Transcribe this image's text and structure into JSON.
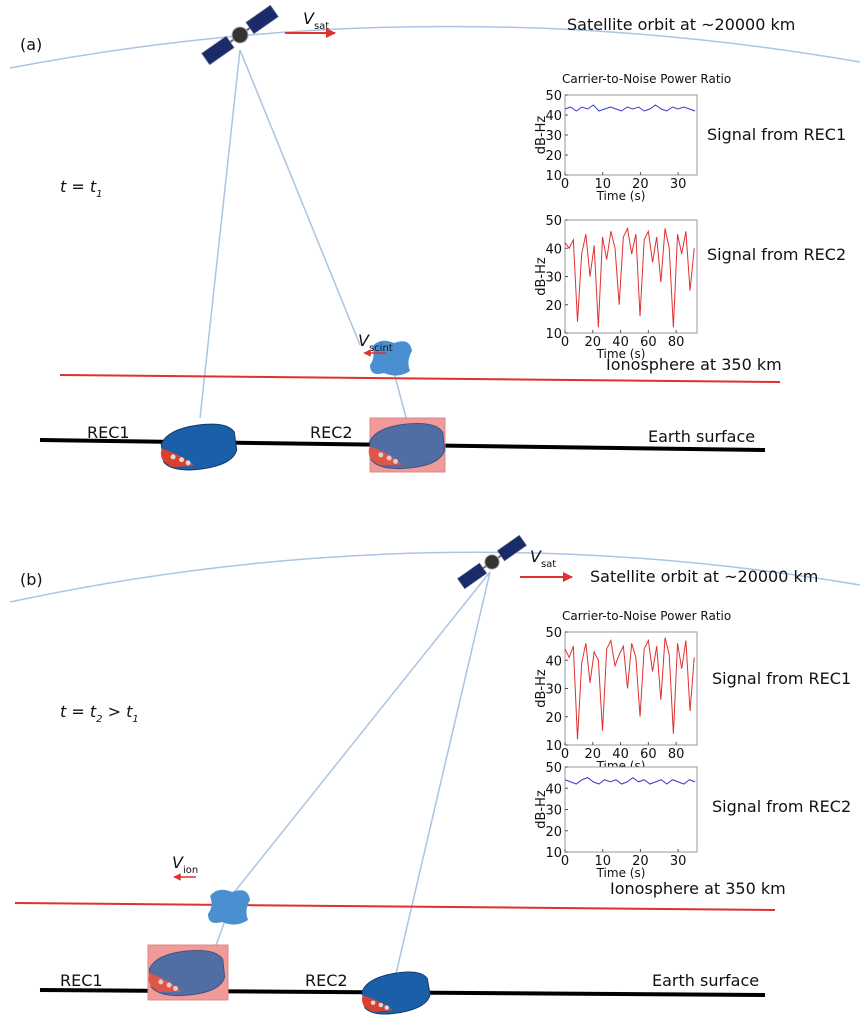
{
  "panels": [
    {
      "label": "(a)",
      "orbit_label": "Satellite orbit at ~20000 km",
      "velocity_sat": [
        "V",
        "sat"
      ],
      "time_label": [
        "t = t",
        "1"
      ],
      "ionosphere_label": "Ionosphere at 350 km",
      "velocity_irregularity": [
        "V",
        "scint"
      ],
      "earth_label": "Earth surface",
      "receivers": [
        "REC1",
        "REC2"
      ],
      "charts": [
        {
          "title": "Carrier-to-Noise Power Ratio",
          "ylabel": "dB-Hz",
          "xlabel": "Time (s)",
          "signal_label": "Signal from REC1",
          "color": "#3a3ad0",
          "xlim": [
            0,
            35
          ],
          "xticks": [
            0,
            10,
            20,
            30
          ],
          "ylim": [
            10,
            50
          ],
          "yticks": [
            10,
            20,
            30,
            40,
            50
          ],
          "x": [
            0,
            1.5,
            3,
            4.5,
            6,
            7.5,
            9,
            10.5,
            12,
            13.5,
            15,
            16.5,
            18,
            19.5,
            21,
            22.5,
            24,
            25.5,
            27,
            28.5,
            30,
            31.5,
            33,
            34.5
          ],
          "values": [
            43,
            44,
            42,
            44,
            43,
            45,
            42,
            43,
            44,
            43,
            42,
            44,
            43,
            44,
            42,
            43,
            45,
            43,
            42,
            44,
            43,
            44,
            43,
            42
          ]
        },
        {
          "ylabel": "dB-Hz",
          "xlabel": "Time (s)",
          "signal_label": "Signal from REC2",
          "color": "#e03030",
          "xlim": [
            0,
            95
          ],
          "xticks": [
            0,
            20,
            40,
            60,
            80
          ],
          "ylim": [
            10,
            50
          ],
          "yticks": [
            10,
            20,
            30,
            40,
            50
          ],
          "x": [
            0,
            3,
            6,
            9,
            12,
            15,
            18,
            21,
            24,
            27,
            30,
            33,
            36,
            39,
            42,
            45,
            48,
            51,
            54,
            57,
            60,
            63,
            66,
            69,
            72,
            75,
            78,
            81,
            84,
            87,
            90,
            93
          ],
          "values": [
            42,
            40,
            43,
            14,
            38,
            45,
            30,
            41,
            12,
            44,
            36,
            46,
            40,
            20,
            44,
            47,
            38,
            45,
            16,
            43,
            46,
            35,
            44,
            28,
            47,
            40,
            12,
            45,
            38,
            46,
            25,
            40
          ]
        }
      ]
    },
    {
      "label": "(b)",
      "orbit_label": "Satellite orbit at ~20000 km",
      "velocity_sat": [
        "V",
        "sat"
      ],
      "time_label": [
        "t = t",
        "2",
        " > t",
        "1"
      ],
      "ionosphere_label": "Ionosphere at 350 km",
      "velocity_irregularity": [
        "V",
        "ion"
      ],
      "earth_label": "Earth surface",
      "receivers": [
        "REC1",
        "REC2"
      ],
      "charts": [
        {
          "title": "Carrier-to-Noise Power Ratio",
          "ylabel": "dB-Hz",
          "xlabel": "Time (s)",
          "signal_label": "Signal from REC1",
          "color": "#e03030",
          "xlim": [
            0,
            95
          ],
          "xticks": [
            0,
            20,
            40,
            60,
            80
          ],
          "ylim": [
            10,
            50
          ],
          "yticks": [
            10,
            20,
            30,
            40,
            50
          ],
          "x": [
            0,
            3,
            6,
            9,
            12,
            15,
            18,
            21,
            24,
            27,
            30,
            33,
            36,
            39,
            42,
            45,
            48,
            51,
            54,
            57,
            60,
            63,
            66,
            69,
            72,
            75,
            78,
            81,
            84,
            87,
            90,
            93
          ],
          "values": [
            44,
            41,
            45,
            12,
            39,
            46,
            32,
            43,
            40,
            15,
            44,
            47,
            38,
            42,
            45,
            30,
            46,
            41,
            20,
            44,
            47,
            36,
            45,
            26,
            48,
            42,
            14,
            46,
            37,
            47,
            22,
            41
          ]
        },
        {
          "ylabel": "dB-Hz",
          "xlabel": "Time (s)",
          "signal_label": "Signal from REC2",
          "color": "#3a3ad0",
          "xlim": [
            0,
            35
          ],
          "xticks": [
            0,
            10,
            20,
            30
          ],
          "ylim": [
            10,
            50
          ],
          "yticks": [
            10,
            20,
            30,
            40,
            50
          ],
          "x": [
            0,
            1.5,
            3,
            4.5,
            6,
            7.5,
            9,
            10.5,
            12,
            13.5,
            15,
            16.5,
            18,
            19.5,
            21,
            22.5,
            24,
            25.5,
            27,
            28.5,
            30,
            31.5,
            33,
            34.5
          ],
          "values": [
            44,
            43,
            42,
            44,
            45,
            43,
            42,
            44,
            43,
            44,
            42,
            43,
            45,
            43,
            44,
            42,
            43,
            44,
            42,
            44,
            43,
            42,
            44,
            43
          ]
        }
      ]
    }
  ]
}
